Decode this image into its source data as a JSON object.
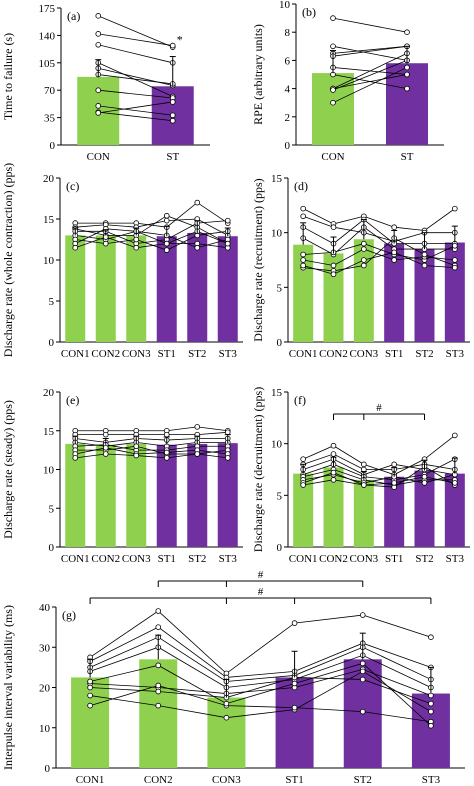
{
  "colors": {
    "con": "#8fd14f",
    "st": "#7030a0",
    "line": "#000000"
  },
  "chart_data": [
    {
      "panel": "(a)",
      "type": "bar",
      "ylabel": "Time to failure (s)",
      "ylim": [
        0,
        175
      ],
      "yticks": [
        0,
        35,
        70,
        105,
        140,
        175
      ],
      "categories": [
        "CON",
        "ST"
      ],
      "values": [
        87,
        75
      ],
      "errors": [
        22,
        38
      ],
      "annotations": [
        {
          "category": "ST",
          "text": "*"
        }
      ],
      "subjects": [
        [
          165,
          125
        ],
        [
          142,
          127
        ],
        [
          128,
          105
        ],
        [
          105,
          62
        ],
        [
          98,
          76
        ],
        [
          90,
          78
        ],
        [
          70,
          60
        ],
        [
          50,
          38
        ],
        [
          42,
          31
        ],
        [
          41,
          55
        ]
      ]
    },
    {
      "panel": "(b)",
      "type": "bar",
      "ylabel": "RPE (arbitrary units)",
      "ylim": [
        0,
        10
      ],
      "yticks": [
        0,
        2,
        4,
        6,
        8,
        10
      ],
      "categories": [
        "CON",
        "ST"
      ],
      "values": [
        5.1,
        5.8
      ],
      "errors": [
        1.6,
        1.2
      ],
      "subjects": [
        [
          9,
          8
        ],
        [
          7,
          6
        ],
        [
          6.5,
          7
        ],
        [
          6.3,
          7
        ],
        [
          5.5,
          5
        ],
        [
          5,
          4
        ],
        [
          4,
          5
        ],
        [
          4,
          6.5
        ],
        [
          3.9,
          6
        ],
        [
          3,
          5.5
        ]
      ]
    },
    {
      "panel": "(c)",
      "type": "bar",
      "ylabel": "Discharge rate (whole contraction) (pps)",
      "ylim": [
        0,
        20
      ],
      "yticks": [
        0,
        5,
        10,
        15,
        20
      ],
      "categories": [
        "CON1",
        "CON2",
        "CON3",
        "ST1",
        "ST2",
        "ST3"
      ],
      "values": [
        13.0,
        13.0,
        13.0,
        12.9,
        13.3,
        12.9
      ],
      "errors": [
        0.9,
        0.7,
        0.9,
        1.2,
        1.5,
        1.0
      ],
      "subjects": [
        [
          14.5,
          14.5,
          14.5,
          14.0,
          17.0,
          14.5
        ],
        [
          14.0,
          14.3,
          14.0,
          14.8,
          15.0,
          13.0
        ],
        [
          13.8,
          13.0,
          13.0,
          15.4,
          14.0,
          12.0
        ],
        [
          13.5,
          13.5,
          12.0,
          12.5,
          14.5,
          14.8
        ],
        [
          13.0,
          12.5,
          13.5,
          12.0,
          12.0,
          11.5
        ],
        [
          12.5,
          12.0,
          12.5,
          11.2,
          13.0,
          13.5
        ],
        [
          12.0,
          13.8,
          13.5,
          13.0,
          11.5,
          12.5
        ],
        [
          11.5,
          12.8,
          11.5,
          12.0,
          13.5,
          12.0
        ]
      ]
    },
    {
      "panel": "(d)",
      "type": "bar",
      "ylabel": "Discharge rate (recruitment) (pps)",
      "ylim": [
        0,
        15
      ],
      "yticks": [
        0,
        5,
        10,
        15
      ],
      "categories": [
        "CON1",
        "CON2",
        "CON3",
        "ST1",
        "ST2",
        "ST3"
      ],
      "values": [
        8.9,
        8.1,
        9.4,
        9.0,
        8.5,
        9.1
      ],
      "errors": [
        2.0,
        1.5,
        1.8,
        1.2,
        1.5,
        1.5
      ],
      "subjects": [
        [
          12.2,
          10.8,
          11.5,
          10.5,
          10.2,
          12.2
        ],
        [
          11.5,
          10.5,
          10.0,
          9.2,
          10.0,
          10.0
        ],
        [
          10.5,
          9.0,
          11.2,
          9.0,
          9.0,
          9.0
        ],
        [
          9.5,
          8.0,
          10.5,
          8.5,
          8.5,
          8.5
        ],
        [
          8.0,
          8.2,
          9.0,
          8.0,
          7.5,
          8.8
        ],
        [
          7.5,
          7.0,
          8.5,
          7.5,
          7.8,
          7.5
        ],
        [
          6.8,
          6.5,
          7.0,
          9.5,
          8.0,
          7.0
        ],
        [
          7.0,
          6.2,
          7.5,
          8.2,
          7.0,
          6.8
        ]
      ]
    },
    {
      "panel": "(e)",
      "type": "bar",
      "ylabel": "Discharge rate (steady) (pps)",
      "ylim": [
        0,
        20
      ],
      "yticks": [
        0,
        5,
        10,
        15,
        20
      ],
      "categories": [
        "CON1",
        "CON2",
        "CON3",
        "ST1",
        "ST2",
        "ST3"
      ],
      "values": [
        13.3,
        13.2,
        13.3,
        13.2,
        13.3,
        13.4
      ],
      "errors": [
        1.0,
        0.8,
        1.0,
        1.0,
        1.0,
        1.1
      ],
      "subjects": [
        [
          15.0,
          15.0,
          15.0,
          15.0,
          15.5,
          15.0
        ],
        [
          14.5,
          14.5,
          14.5,
          14.5,
          14.5,
          14.8
        ],
        [
          14.0,
          13.5,
          14.0,
          13.8,
          14.0,
          14.0
        ],
        [
          13.5,
          13.0,
          13.5,
          13.0,
          13.5,
          13.5
        ],
        [
          13.0,
          13.2,
          12.5,
          12.5,
          13.0,
          13.0
        ],
        [
          12.5,
          12.5,
          13.0,
          12.0,
          12.0,
          12.5
        ],
        [
          12.0,
          12.8,
          12.0,
          12.2,
          12.5,
          12.0
        ],
        [
          11.5,
          12.0,
          11.8,
          11.5,
          12.0,
          11.5
        ]
      ]
    },
    {
      "panel": "(f)",
      "type": "bar",
      "ylabel": "Discharge rate (decruitment) (pps)",
      "ylim": [
        0,
        15
      ],
      "yticks": [
        0,
        5,
        10,
        15
      ],
      "categories": [
        "CON1",
        "CON2",
        "CON3",
        "ST1",
        "ST2",
        "ST3"
      ],
      "values": [
        7.1,
        7.7,
        6.5,
        6.8,
        7.4,
        7.1
      ],
      "errors": [
        0.9,
        1.0,
        0.8,
        0.9,
        1.0,
        1.5
      ],
      "significance": [
        {
          "from": 1,
          "to": 4,
          "ticks": [
            1,
            2,
            4
          ],
          "label": "#"
        }
      ],
      "subjects": [
        [
          8.5,
          9.8,
          8.0,
          7.0,
          8.5,
          10.8
        ],
        [
          8.0,
          9.0,
          7.5,
          7.5,
          8.0,
          7.5
        ],
        [
          7.5,
          8.5,
          7.0,
          8.0,
          7.5,
          7.0
        ],
        [
          7.0,
          8.0,
          6.8,
          6.5,
          7.0,
          8.5
        ],
        [
          6.8,
          7.5,
          6.5,
          6.0,
          6.5,
          6.5
        ],
        [
          6.5,
          7.0,
          6.2,
          6.8,
          6.2,
          7.0
        ],
        [
          6.2,
          7.2,
          6.0,
          5.8,
          7.8,
          6.0
        ],
        [
          6.0,
          6.5,
          6.0,
          6.2,
          6.8,
          6.2
        ]
      ]
    },
    {
      "panel": "(g)",
      "type": "bar",
      "ylabel": "Interpulse interval variability (ms)",
      "ylim": [
        0,
        40
      ],
      "yticks": [
        0,
        10,
        20,
        30,
        40
      ],
      "categories": [
        "CON1",
        "CON2",
        "CON3",
        "ST1",
        "ST2",
        "ST3"
      ],
      "values": [
        22.5,
        27.0,
        17.5,
        22.5,
        27.0,
        18.5
      ],
      "errors": [
        4.5,
        6.0,
        4.5,
        6.5,
        6.5,
        6.5
      ],
      "significance": [
        {
          "from": 1,
          "to": 4,
          "ticks": [
            1,
            2,
            4
          ],
          "label": "#"
        },
        {
          "from": 0,
          "to": 5,
          "ticks": [
            0,
            2,
            3,
            5
          ],
          "label": "#"
        }
      ],
      "subjects": [
        [
          27.5,
          39.0,
          23.5,
          36.0,
          38.0,
          32.5
        ],
        [
          26.5,
          35.0,
          22.5,
          24.0,
          31.0,
          25.0
        ],
        [
          25.0,
          32.5,
          21.5,
          23.0,
          30.0,
          22.0
        ],
        [
          24.0,
          30.0,
          20.0,
          22.0,
          28.0,
          20.0
        ],
        [
          21.0,
          20.0,
          18.5,
          20.0,
          24.5,
          18.0
        ],
        [
          20.0,
          19.0,
          17.5,
          22.5,
          22.0,
          16.0
        ],
        [
          18.0,
          15.5,
          12.5,
          14.5,
          24.0,
          14.0
        ],
        [
          15.5,
          20.5,
          15.5,
          15.0,
          14.0,
          11.5
        ],
        [
          21.5,
          25.5,
          16.0,
          21.0,
          26.0,
          10.5
        ]
      ]
    }
  ]
}
